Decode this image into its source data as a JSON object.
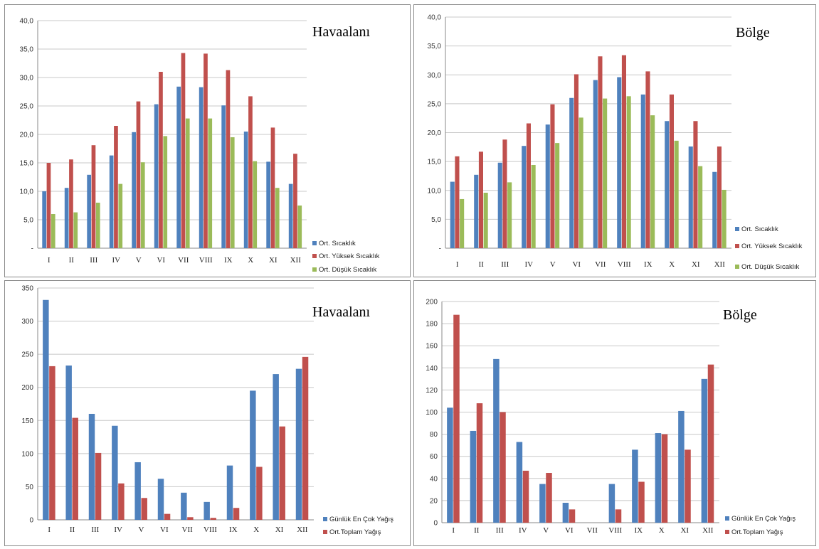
{
  "colors": {
    "blue": "#4f81bd",
    "red": "#c0504d",
    "green": "#9bbb59",
    "grid": "#c8c8c8",
    "axis": "#888888"
  },
  "chart_data": [
    {
      "type": "bar",
      "title": "Havaalanı",
      "categories": [
        "I",
        "II",
        "III",
        "IV",
        "V",
        "VI",
        "VII",
        "VIII",
        "IX",
        "X",
        "XI",
        "XII"
      ],
      "ylim": [
        0,
        40
      ],
      "yticks": [
        "-",
        "5,0",
        "10,0",
        "15,0",
        "20,0",
        "25,0",
        "30,0",
        "35,0",
        "40,0"
      ],
      "grid": true,
      "legend": "right-bottom",
      "series": [
        {
          "name": "Ort. Sıcaklık",
          "color": "blue",
          "values": [
            10.0,
            10.6,
            12.9,
            16.3,
            20.4,
            25.3,
            28.4,
            28.3,
            25.1,
            20.5,
            15.2,
            11.3
          ]
        },
        {
          "name": "Ort. Yüksek Sıcaklık",
          "color": "red",
          "values": [
            15.0,
            15.6,
            18.1,
            21.5,
            25.8,
            31.0,
            34.3,
            34.2,
            31.3,
            26.7,
            21.2,
            16.6
          ]
        },
        {
          "name": "Ort. Düşük Sıcaklık",
          "color": "green",
          "values": [
            6.0,
            6.3,
            8.0,
            11.3,
            15.1,
            19.7,
            22.8,
            22.8,
            19.5,
            15.3,
            10.6,
            7.5
          ]
        }
      ]
    },
    {
      "type": "bar",
      "title": "Bölge",
      "categories": [
        "I",
        "II",
        "III",
        "IV",
        "V",
        "VI",
        "VII",
        "VIII",
        "IX",
        "X",
        "XI",
        "XII"
      ],
      "ylim": [
        0,
        40
      ],
      "yticks": [
        "-",
        "5,0",
        "10,0",
        "15,0",
        "20,0",
        "25,0",
        "30,0",
        "35,0",
        "40,0"
      ],
      "grid": true,
      "legend": "right-bottom",
      "series": [
        {
          "name": "Ort. Sıcaklık",
          "color": "blue",
          "values": [
            11.5,
            12.7,
            14.8,
            17.7,
            21.4,
            26.0,
            29.1,
            29.6,
            26.6,
            22.0,
            17.6,
            13.2
          ]
        },
        {
          "name": "Ort. Yüksek Sıcaklık",
          "color": "red",
          "values": [
            15.9,
            16.7,
            18.8,
            21.6,
            24.9,
            30.1,
            33.2,
            33.4,
            30.6,
            26.6,
            22.0,
            17.6
          ]
        },
        {
          "name": "Ort. Düşük Sıcaklık",
          "color": "green",
          "values": [
            8.5,
            9.6,
            11.4,
            14.4,
            18.2,
            22.6,
            25.9,
            26.3,
            23.0,
            18.6,
            14.2,
            10.1
          ]
        }
      ]
    },
    {
      "type": "bar",
      "title": "Havaalanı",
      "categories": [
        "I",
        "II",
        "III",
        "IV",
        "V",
        "VI",
        "VII",
        "VIII",
        "IX",
        "X",
        "XI",
        "XII"
      ],
      "ylim": [
        0,
        350
      ],
      "yticks": [
        "0",
        "50",
        "100",
        "150",
        "200",
        "250",
        "300",
        "350"
      ],
      "grid": true,
      "legend": "right-bottom",
      "series": [
        {
          "name": "Günlük En Çok Yağış",
          "color": "blue",
          "values": [
            332,
            233,
            160,
            142,
            87,
            62,
            41,
            27,
            82,
            195,
            220,
            228
          ]
        },
        {
          "name": "Ort.Toplam Yağış",
          "color": "red",
          "values": [
            232,
            154,
            101,
            55,
            33,
            9,
            4,
            3,
            18,
            80,
            141,
            246
          ]
        }
      ]
    },
    {
      "type": "bar",
      "title": "Bölge",
      "categories": [
        "I",
        "II",
        "III",
        "IV",
        "V",
        "VI",
        "VII",
        "VIII",
        "IX",
        "X",
        "XI",
        "XII"
      ],
      "ylim": [
        0,
        200
      ],
      "yticks": [
        "0",
        "20",
        "40",
        "60",
        "80",
        "100",
        "120",
        "140",
        "160",
        "180",
        "200"
      ],
      "grid": true,
      "legend": "right-bottom",
      "series": [
        {
          "name": "Günlük En Çok Yağış",
          "color": "blue",
          "values": [
            104,
            83,
            148,
            73,
            35,
            18,
            0,
            35,
            66,
            81,
            101,
            130
          ]
        },
        {
          "name": "Ort.Toplam Yağış",
          "color": "red",
          "values": [
            188,
            108,
            100,
            47,
            45,
            12,
            0,
            12,
            37,
            80,
            66,
            143
          ]
        }
      ]
    }
  ]
}
